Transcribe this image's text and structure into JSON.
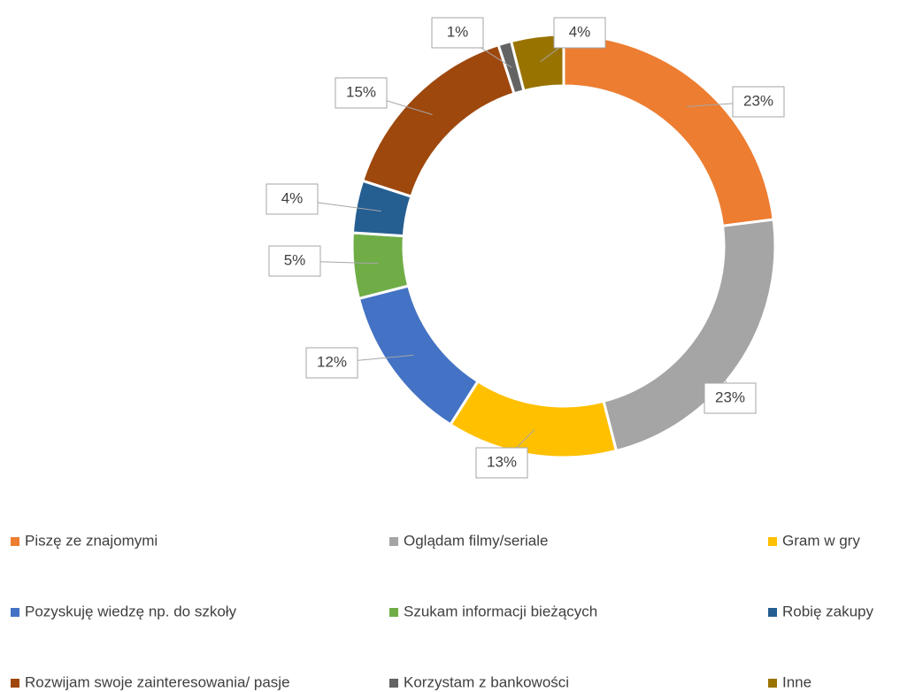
{
  "chart_data": {
    "type": "donut",
    "categories": [
      "Piszę ze znajomymi",
      "Oglądam filmy/seriale",
      "Gram w gry",
      "Pozyskuję wiedzę np. do szkoły",
      "Szukam informacji bieżących",
      "Robię zakupy",
      "Rozwijam swoje zainteresowania/ pasje",
      "Korzystam z bankowości",
      "Inne"
    ],
    "values": [
      23,
      23,
      13,
      12,
      5,
      4,
      15,
      1,
      4
    ],
    "value_labels": [
      "23%",
      "23%",
      "13%",
      "12%",
      "5%",
      "4%",
      "15%",
      "1%",
      "4%"
    ],
    "colors": [
      "#ED7D31",
      "#A5A5A5",
      "#FFC000",
      "#4472C4",
      "#70AD47",
      "#255E91",
      "#9E480E",
      "#636363",
      "#997300"
    ],
    "legend": "bottom"
  }
}
